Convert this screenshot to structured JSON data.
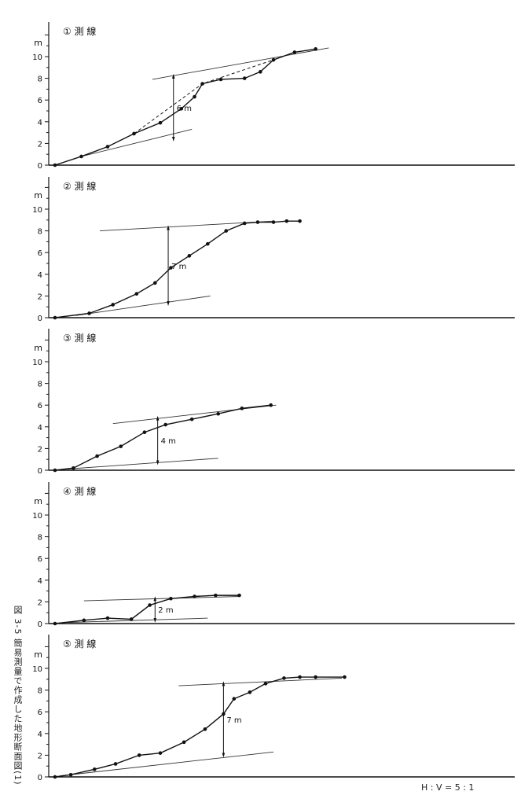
{
  "figure": {
    "caption_prefix": "図 3-5",
    "caption_text": "簡易測量で作成した地形断面図(1)",
    "scale_note": "H : V = 5 : 1"
  },
  "chart_data": [
    {
      "type": "line",
      "title": "① 測 線",
      "ylabel": "m",
      "ylim": [
        0,
        12
      ],
      "yticks": [
        "0",
        "2",
        "4",
        "6",
        "8",
        "10"
      ],
      "x": [
        0,
        1,
        2,
        3,
        4,
        4.8,
        5.3,
        5.6,
        6.3,
        7.2,
        7.8,
        8.3,
        9.1,
        9.9
      ],
      "values": [
        0,
        0.8,
        1.7,
        2.9,
        3.9,
        5.2,
        6.3,
        7.5,
        7.9,
        8.0,
        8.6,
        9.7,
        10.4,
        10.7
      ],
      "dashed_segment": {
        "x": [
          3,
          5.6,
          8.3
        ],
        "values": [
          2.9,
          7.5,
          9.7
        ]
      },
      "lower_line": {
        "x": [
          1,
          5.2
        ],
        "values": [
          0.8,
          3.3
        ]
      },
      "upper_line": {
        "x": [
          3.7,
          10.4
        ],
        "values": [
          7.9,
          10.8
        ]
      },
      "height_marker": {
        "x": 4.5,
        "from": 2.4,
        "to": 8.2,
        "label": "6 m"
      }
    },
    {
      "type": "line",
      "title": "② 測 線",
      "ylabel": "m",
      "ylim": [
        0,
        12
      ],
      "yticks": [
        "0",
        "2",
        "4",
        "6",
        "8",
        "10"
      ],
      "x": [
        0,
        1.3,
        2.2,
        3.1,
        3.8,
        4.4,
        5.1,
        5.8,
        6.5,
        7.2,
        7.7,
        8.3,
        8.8,
        9.3
      ],
      "values": [
        0,
        0.4,
        1.2,
        2.2,
        3.2,
        4.6,
        5.7,
        6.8,
        8.0,
        8.7,
        8.8,
        8.8,
        8.9,
        8.9
      ],
      "lower_line": {
        "x": [
          0.8,
          5.9
        ],
        "values": [
          0.2,
          2.0
        ]
      },
      "upper_line": {
        "x": [
          1.7,
          8.3
        ],
        "values": [
          8.0,
          8.9
        ]
      },
      "height_marker": {
        "x": 4.3,
        "from": 1.3,
        "to": 8.3,
        "label": "7 m"
      }
    },
    {
      "type": "line",
      "title": "③ 測 線",
      "ylabel": "m",
      "ylim": [
        0,
        12
      ],
      "yticks": [
        "0",
        "2",
        "4",
        "6",
        "8",
        "10"
      ],
      "x": [
        0,
        0.7,
        1.6,
        2.5,
        3.4,
        4.2,
        5.2,
        6.2,
        7.1,
        8.2
      ],
      "values": [
        0,
        0.2,
        1.3,
        2.2,
        3.5,
        4.2,
        4.7,
        5.2,
        5.7,
        6.0
      ],
      "lower_line": {
        "x": [
          0.4,
          6.2
        ],
        "values": [
          0.1,
          1.1
        ]
      },
      "upper_line": {
        "x": [
          2.2,
          8.4
        ],
        "values": [
          4.3,
          6.0
        ]
      },
      "height_marker": {
        "x": 3.9,
        "from": 0.7,
        "to": 4.8,
        "label": "4 m"
      }
    },
    {
      "type": "line",
      "title": "④ 測 線",
      "ylabel": "m",
      "ylim": [
        0,
        12
      ],
      "yticks": [
        "0",
        "2",
        "4",
        "6",
        "8",
        "10"
      ],
      "x": [
        0,
        1.1,
        2.0,
        2.9,
        3.6,
        4.4,
        5.3,
        6.1,
        7.0
      ],
      "values": [
        0,
        0.3,
        0.5,
        0.4,
        1.7,
        2.3,
        2.5,
        2.6,
        2.6
      ],
      "lower_line": {
        "x": [
          0.5,
          5.8
        ],
        "values": [
          0.1,
          0.5
        ]
      },
      "upper_line": {
        "x": [
          1.1,
          7.0
        ],
        "values": [
          2.1,
          2.5
        ]
      },
      "height_marker": {
        "x": 3.8,
        "from": 0.3,
        "to": 2.3,
        "label": "2 m"
      }
    },
    {
      "type": "line",
      "title": "⑤ 測 線",
      "ylabel": "m",
      "ylim": [
        0,
        12
      ],
      "yticks": [
        "0",
        "2",
        "4",
        "6",
        "8",
        "10"
      ],
      "x": [
        0,
        0.6,
        1.5,
        2.3,
        3.2,
        4.0,
        4.9,
        5.7,
        6.4,
        6.8,
        7.4,
        8.0,
        8.7,
        9.3,
        9.9,
        11.0
      ],
      "values": [
        0,
        0.2,
        0.7,
        1.2,
        2.0,
        2.2,
        3.2,
        4.4,
        5.8,
        7.2,
        7.8,
        8.6,
        9.1,
        9.2,
        9.2,
        9.2
      ],
      "lower_line": {
        "x": [
          0.2,
          8.3
        ],
        "values": [
          0.1,
          2.3
        ]
      },
      "upper_line": {
        "x": [
          4.7,
          10.9
        ],
        "values": [
          8.4,
          9.1
        ]
      },
      "height_marker": {
        "x": 6.4,
        "from": 2.0,
        "to": 8.6,
        "label": "7 m"
      }
    }
  ]
}
